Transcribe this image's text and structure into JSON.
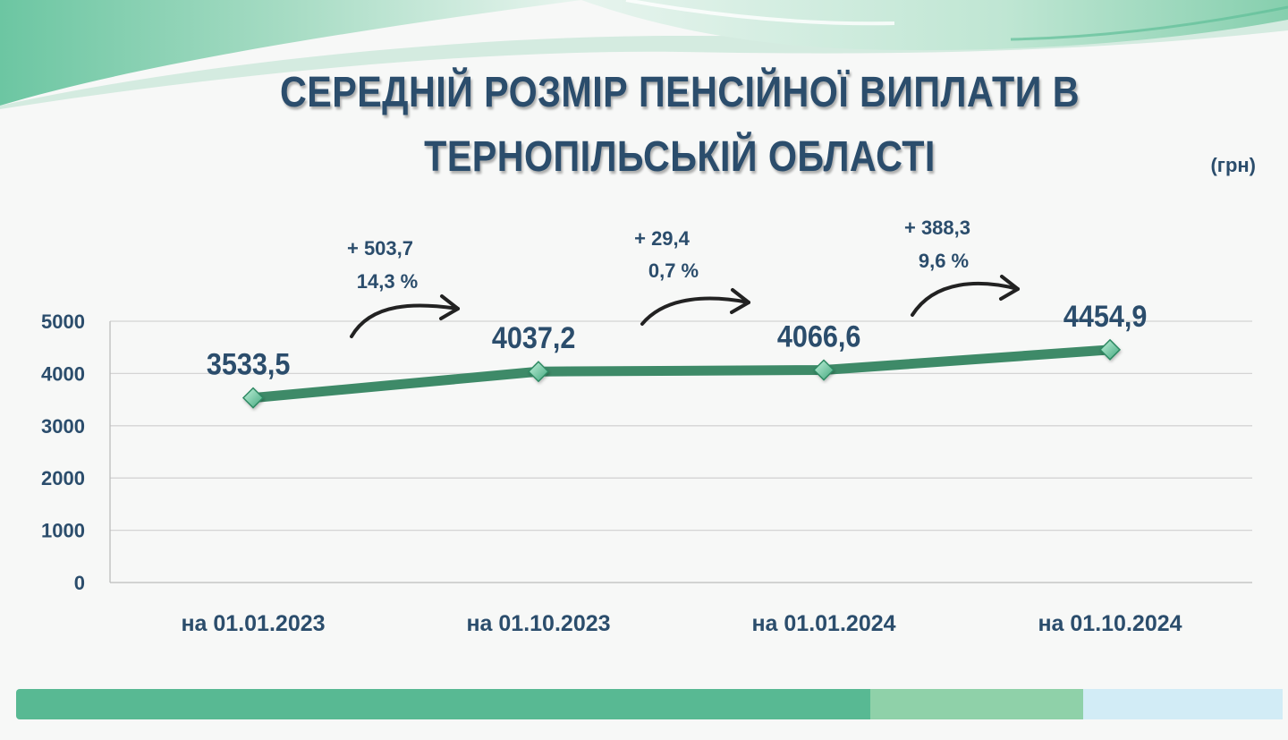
{
  "title": {
    "line1": "СЕРЕДНІЙ РОЗМІР ПЕНСІЙНОЇ ВИПЛАТИ В",
    "line2": "ТЕРНОПІЛЬСЬКІЙ ОБЛАСТІ"
  },
  "unit_label": "(грн)",
  "colors": {
    "title": "#2b4d6c",
    "axis_text": "#2b4d6c",
    "line": "#3e8a68",
    "marker": "#6fd1a7",
    "grid": "#d4d4d4",
    "footer_primary": "#58b993",
    "footer_secondary": "#8fd1a9",
    "footer_tertiary": "#d2ecf6"
  },
  "chart_data": {
    "type": "line",
    "categories": [
      "на 01.01.2023",
      "на 01.10.2023",
      "на 01.01.2024",
      "на 01.10.2024"
    ],
    "series": [
      {
        "values": [
          3533.5,
          4037.2,
          4066.6,
          4454.9
        ],
        "data_labels": [
          "3533,5",
          "4037,2",
          "4066,6",
          "4454,9"
        ]
      }
    ],
    "yticks": [
      0,
      1000,
      2000,
      3000,
      4000,
      5000
    ],
    "ylim": [
      0,
      5000
    ],
    "grid": true,
    "legend": "none",
    "marker": "diamond",
    "annotations": [
      {
        "between": [
          0,
          1
        ],
        "change": "+ 503,7",
        "percent": "14,3 %"
      },
      {
        "between": [
          1,
          2
        ],
        "change": "+ 29,4",
        "percent": "0,7 %"
      },
      {
        "between": [
          2,
          3
        ],
        "change": "+ 388,3",
        "percent": "9,6 %"
      }
    ]
  }
}
